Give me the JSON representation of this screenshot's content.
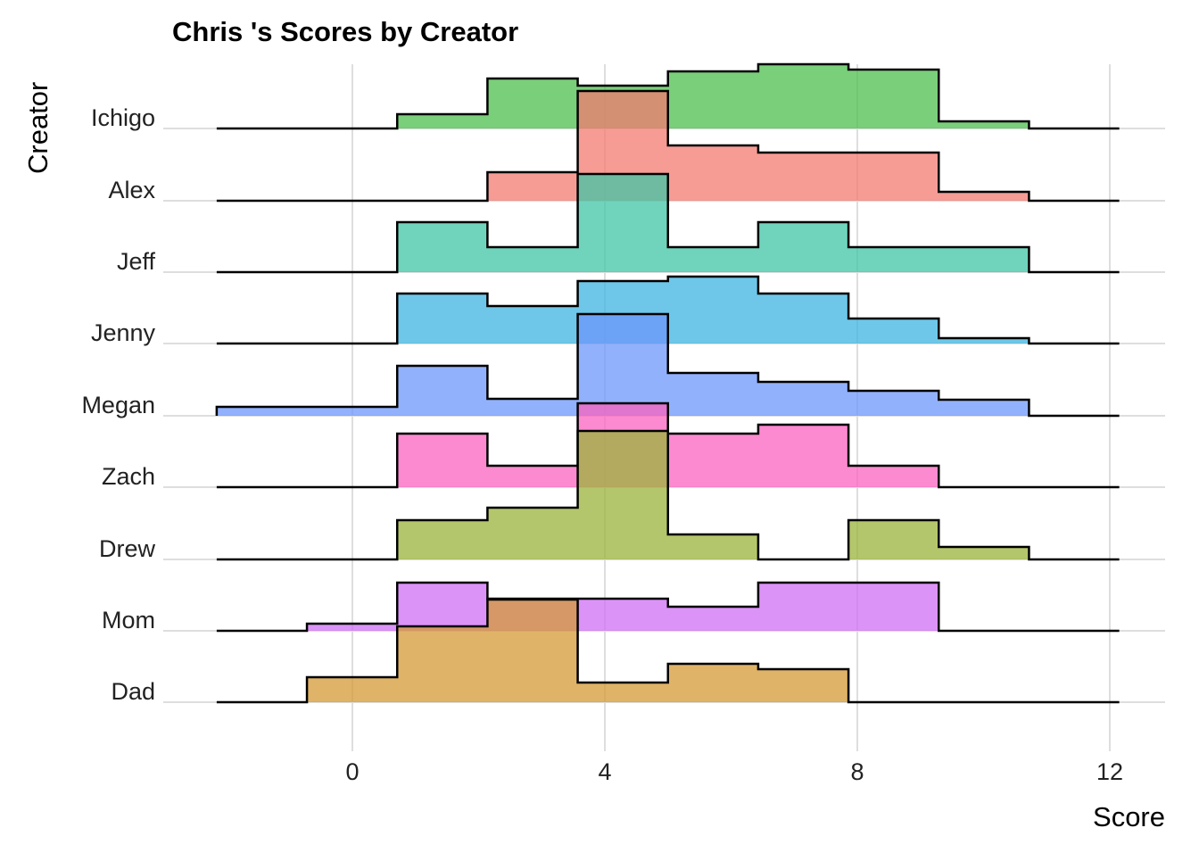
{
  "chart_data": {
    "type": "ridgeline-histogram",
    "title": "Chris 's Scores by Creator",
    "xlabel": "Score",
    "ylabel": "Creator",
    "xlim": [
      -2.15,
      12.15
    ],
    "x_ticks": [
      0,
      4,
      8,
      12
    ],
    "grid": true,
    "legend": "none",
    "bin_edges": [
      -2.15,
      -0.72,
      0.71,
      2.14,
      3.57,
      5.0,
      6.43,
      7.86,
      9.29,
      10.72,
      12.15
    ],
    "series": [
      {
        "name": "Ichigo",
        "color": "#4DBF4D",
        "heights": [
          0,
          0,
          16,
          56,
          48,
          64,
          72,
          66,
          8,
          0
        ]
      },
      {
        "name": "Alex",
        "color": "#F37B72",
        "heights": [
          0,
          0,
          0,
          32,
          123,
          62,
          54,
          54,
          10,
          0
        ]
      },
      {
        "name": "Jeff",
        "color": "#40C5A5",
        "heights": [
          0,
          0,
          56,
          28,
          110,
          28,
          56,
          28,
          28,
          0
        ]
      },
      {
        "name": "Jenny",
        "color": "#3DB4E0",
        "heights": [
          0,
          0,
          56,
          42,
          70,
          75,
          56,
          28,
          6,
          0
        ]
      },
      {
        "name": "Megan",
        "color": "#6E97FB",
        "heights": [
          10,
          10,
          56,
          19,
          114,
          48,
          38,
          28,
          18,
          0
        ]
      },
      {
        "name": "Zach",
        "color": "#FB63C0",
        "heights": [
          0,
          0,
          60,
          24,
          94,
          60,
          70,
          24,
          0,
          0
        ]
      },
      {
        "name": "Drew",
        "color": "#9BB339",
        "heights": [
          0,
          0,
          44,
          58,
          144,
          28,
          0,
          44,
          14,
          0
        ]
      },
      {
        "name": "Mom",
        "color": "#CF6FF5",
        "heights": [
          0,
          8,
          54,
          36,
          36,
          27,
          54,
          54,
          0,
          0
        ]
      },
      {
        "name": "Dad",
        "color": "#D49A36",
        "heights": [
          0,
          28,
          85,
          115,
          22,
          43,
          37,
          0,
          0,
          0
        ]
      }
    ]
  },
  "labels": {
    "title": "Chris 's Scores by Creator",
    "xlabel": "Score",
    "ylabel": "Creator",
    "ticks": [
      "0",
      "4",
      "8",
      "12"
    ],
    "categories": [
      "Ichigo",
      "Alex",
      "Jeff",
      "Jenny",
      "Megan",
      "Zach",
      "Drew",
      "Mom",
      "Dad"
    ]
  }
}
